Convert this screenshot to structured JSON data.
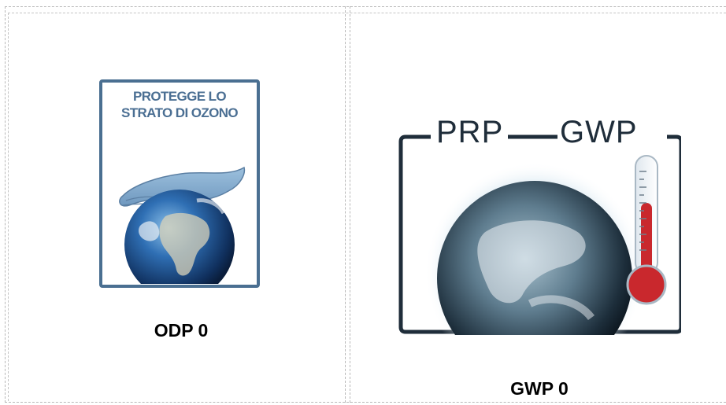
{
  "left_panel": {
    "caption": "ODP 0",
    "badge": {
      "line1": "PROTEGGE LO",
      "line2": "STRATO DI OZONO",
      "icons": [
        "hand-icon",
        "earth-icon"
      ]
    }
  },
  "right_panel": {
    "caption": "GWP 0",
    "badge": {
      "label_left": "PRP",
      "label_right": "GWP",
      "icons": [
        "earth-icon",
        "thermometer-icon"
      ]
    }
  },
  "colors": {
    "odp_badge_border": "#4a6f91",
    "odp_badge_text": "#4b6f93",
    "gwp_badge_frame": "#1f2d3a",
    "thermometer_red": "#c9282d"
  }
}
